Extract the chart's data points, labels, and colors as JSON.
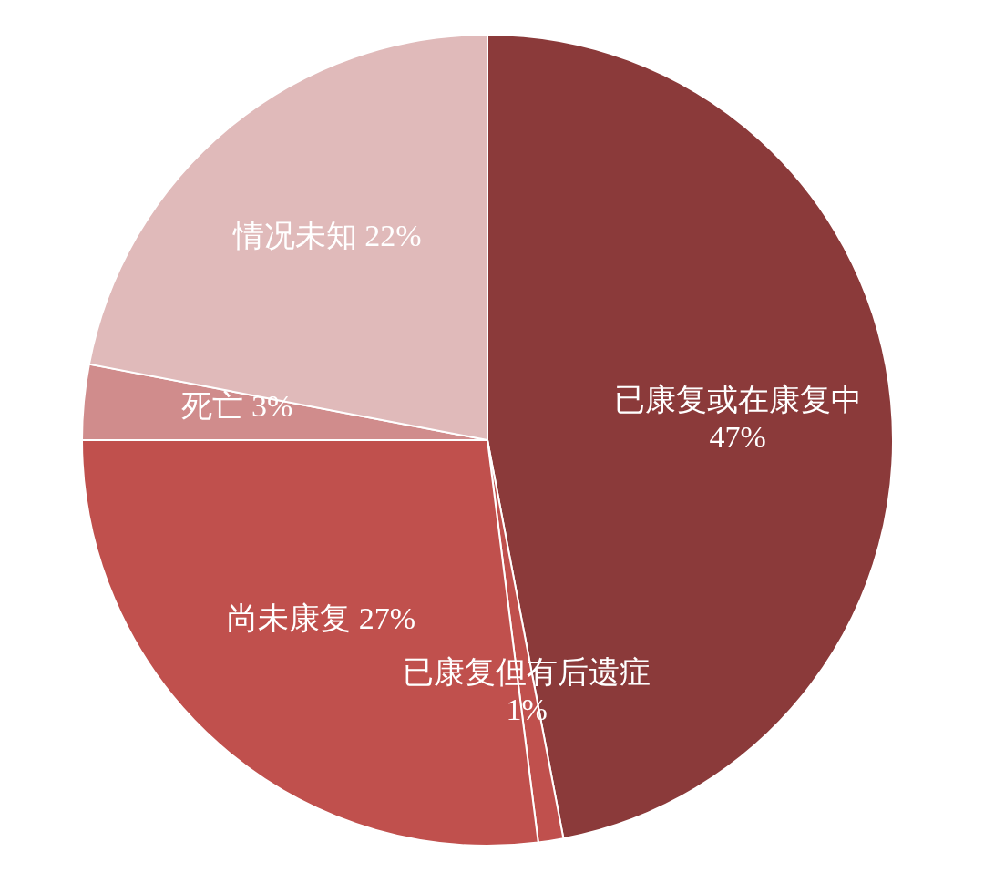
{
  "chart_data": {
    "type": "pie",
    "categories": [
      "已康复或在康复中",
      "已康复但有后遗症",
      "尚未康复",
      "死亡",
      "情况未知"
    ],
    "values": [
      47,
      1,
      27,
      3,
      22
    ],
    "value_labels": [
      "47%",
      "1%",
      "27%",
      "3%",
      "22%"
    ],
    "colors": [
      "#8b3a3a",
      "#c0504d",
      "#c0504d",
      "#d08c8c",
      "#e0baba"
    ]
  }
}
